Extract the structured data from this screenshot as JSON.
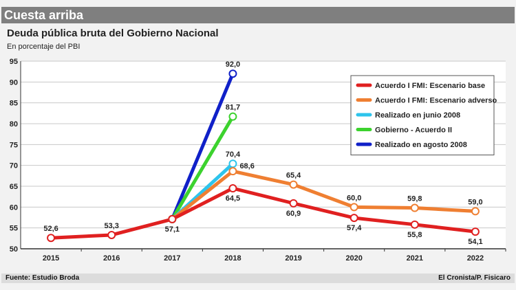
{
  "header": {
    "title": "Cuesta arriba"
  },
  "footer": {
    "source": "Fuente: Estudio Broda",
    "credit": "El Cronista/P. Fisicaro"
  },
  "chart_data": {
    "type": "line",
    "title": "Deuda pública bruta del Gobierno Nacional",
    "subtitle": "En porcentaje del PBI",
    "x": [
      "2015",
      "2016",
      "2017",
      "2018",
      "2019",
      "2020",
      "2021",
      "2022"
    ],
    "ylim": [
      50,
      95
    ],
    "yticks": [
      "50",
      "55",
      "60",
      "65",
      "70",
      "75",
      "80",
      "85",
      "90",
      "95"
    ],
    "grid": true,
    "legend_position": "top-right",
    "series": [
      {
        "name": "Acuerdo I FMI: Escenario base",
        "color": "#e02020",
        "points": [
          [
            "2015",
            52.6
          ],
          [
            "2016",
            53.3
          ],
          [
            "2017",
            57.1
          ],
          [
            "2018",
            64.5
          ],
          [
            "2019",
            60.9
          ],
          [
            "2020",
            57.4
          ],
          [
            "2021",
            55.8
          ],
          [
            "2022",
            54.1
          ]
        ]
      },
      {
        "name": "Acuerdo I FMI: Escenario adverso",
        "color": "#ef7f32",
        "points": [
          [
            "2017",
            57.1
          ],
          [
            "2018",
            68.6
          ],
          [
            "2019",
            65.4
          ],
          [
            "2020",
            60.0
          ],
          [
            "2021",
            59.8
          ],
          [
            "2022",
            59.0
          ]
        ]
      },
      {
        "name": "Realizado en junio 2008",
        "color": "#2ec4ec",
        "points": [
          [
            "2017",
            57.1
          ],
          [
            "2018",
            70.4
          ]
        ]
      },
      {
        "name": "Gobierno - Acuerdo II",
        "color": "#3cd22e",
        "points": [
          [
            "2017",
            57.1
          ],
          [
            "2018",
            81.7
          ]
        ]
      },
      {
        "name": "Realizado en agosto 2008",
        "color": "#1020c8",
        "points": [
          [
            "2017",
            57.1
          ],
          [
            "2018",
            92.0
          ]
        ]
      }
    ],
    "data_labels": [
      {
        "x": "2015",
        "y": 52.6,
        "text": "52,6",
        "pos": "above"
      },
      {
        "x": "2016",
        "y": 53.3,
        "text": "53,3",
        "pos": "above"
      },
      {
        "x": "2017",
        "y": 57.1,
        "text": "57,1",
        "pos": "below"
      },
      {
        "x": "2018",
        "y": 64.5,
        "text": "64,5",
        "pos": "below"
      },
      {
        "x": "2019",
        "y": 60.9,
        "text": "60,9",
        "pos": "below"
      },
      {
        "x": "2020",
        "y": 57.4,
        "text": "57,4",
        "pos": "below"
      },
      {
        "x": "2021",
        "y": 55.8,
        "text": "55,8",
        "pos": "below"
      },
      {
        "x": "2022",
        "y": 54.1,
        "text": "54,1",
        "pos": "below"
      },
      {
        "x": "2018",
        "y": 68.6,
        "text": "68,6",
        "pos": "right"
      },
      {
        "x": "2019",
        "y": 65.4,
        "text": "65,4",
        "pos": "above"
      },
      {
        "x": "2020",
        "y": 60.0,
        "text": "60,0",
        "pos": "above"
      },
      {
        "x": "2021",
        "y": 59.8,
        "text": "59,8",
        "pos": "above"
      },
      {
        "x": "2022",
        "y": 59.0,
        "text": "59,0",
        "pos": "above"
      },
      {
        "x": "2018",
        "y": 70.4,
        "text": "70,4",
        "pos": "above"
      },
      {
        "x": "2018",
        "y": 81.7,
        "text": "81,7",
        "pos": "above"
      },
      {
        "x": "2018",
        "y": 92.0,
        "text": "92,0",
        "pos": "above"
      }
    ]
  }
}
